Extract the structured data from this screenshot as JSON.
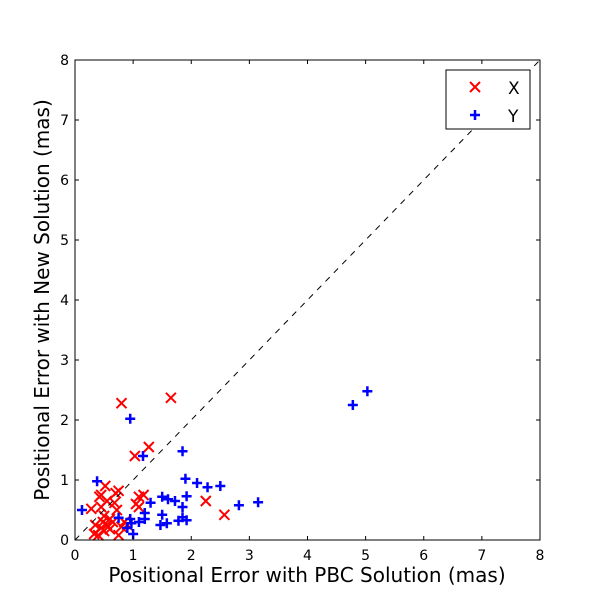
{
  "chart_data": {
    "type": "scatter",
    "title": "",
    "xlabel": "Positional Error with PBC Solution (mas)",
    "ylabel": "Positional Error with New Solution (mas)",
    "xlim": [
      0,
      8
    ],
    "ylim": [
      0,
      8
    ],
    "xticks": [
      "0",
      "1",
      "2",
      "3",
      "4",
      "5",
      "6",
      "7",
      "8"
    ],
    "yticks": [
      "0",
      "1",
      "2",
      "3",
      "4",
      "5",
      "6",
      "7",
      "8"
    ],
    "grid": false,
    "legend_position": "top-right",
    "reference_line": {
      "style": "dashed",
      "from": [
        0,
        0
      ],
      "to": [
        8,
        8
      ]
    },
    "series": [
      {
        "name": "X",
        "marker": "x",
        "color": "#ff0000",
        "points": [
          [
            0.8,
            2.28
          ],
          [
            1.65,
            2.37
          ],
          [
            1.27,
            1.55
          ],
          [
            1.03,
            1.4
          ],
          [
            2.25,
            0.65
          ],
          [
            2.57,
            0.42
          ],
          [
            0.28,
            0.52
          ],
          [
            0.42,
            0.72
          ],
          [
            0.52,
            0.9
          ],
          [
            0.45,
            0.75
          ],
          [
            0.75,
            0.82
          ],
          [
            0.7,
            0.78
          ],
          [
            0.68,
            0.62
          ],
          [
            1.05,
            0.6
          ],
          [
            1.1,
            0.72
          ],
          [
            1.18,
            0.75
          ],
          [
            1.1,
            0.55
          ],
          [
            0.6,
            0.35
          ],
          [
            0.72,
            0.5
          ],
          [
            0.5,
            0.4
          ],
          [
            0.35,
            0.25
          ],
          [
            0.45,
            0.2
          ],
          [
            0.55,
            0.25
          ],
          [
            0.4,
            0.08
          ],
          [
            0.5,
            0.15
          ],
          [
            0.75,
            0.08
          ],
          [
            0.85,
            0.3
          ],
          [
            0.8,
            0.22
          ],
          [
            0.65,
            0.3
          ],
          [
            0.33,
            0.1
          ],
          [
            0.48,
            0.3
          ],
          [
            0.6,
            0.18
          ],
          [
            0.9,
            0.25
          ],
          [
            0.45,
            0.55
          ],
          [
            0.55,
            0.65
          ]
        ]
      },
      {
        "name": "Y",
        "marker": "+",
        "color": "#0000ff",
        "points": [
          [
            0.12,
            0.5
          ],
          [
            0.38,
            0.98
          ],
          [
            0.95,
            2.02
          ],
          [
            1.17,
            1.4
          ],
          [
            1.85,
            1.48
          ],
          [
            4.78,
            2.25
          ],
          [
            5.03,
            2.48
          ],
          [
            1.9,
            1.02
          ],
          [
            2.1,
            0.95
          ],
          [
            2.28,
            0.88
          ],
          [
            2.5,
            0.9
          ],
          [
            1.92,
            0.73
          ],
          [
            1.5,
            0.72
          ],
          [
            1.6,
            0.68
          ],
          [
            1.72,
            0.65
          ],
          [
            1.3,
            0.62
          ],
          [
            2.82,
            0.58
          ],
          [
            3.15,
            0.63
          ],
          [
            1.85,
            0.55
          ],
          [
            1.5,
            0.42
          ],
          [
            1.2,
            0.45
          ],
          [
            0.95,
            0.35
          ],
          [
            1.1,
            0.3
          ],
          [
            0.97,
            0.28
          ],
          [
            1.0,
            0.1
          ],
          [
            1.47,
            0.25
          ],
          [
            1.58,
            0.28
          ],
          [
            1.78,
            0.32
          ],
          [
            1.85,
            0.38
          ],
          [
            1.92,
            0.33
          ],
          [
            0.75,
            0.37
          ],
          [
            0.9,
            0.2
          ],
          [
            1.2,
            0.35
          ]
        ]
      }
    ]
  }
}
